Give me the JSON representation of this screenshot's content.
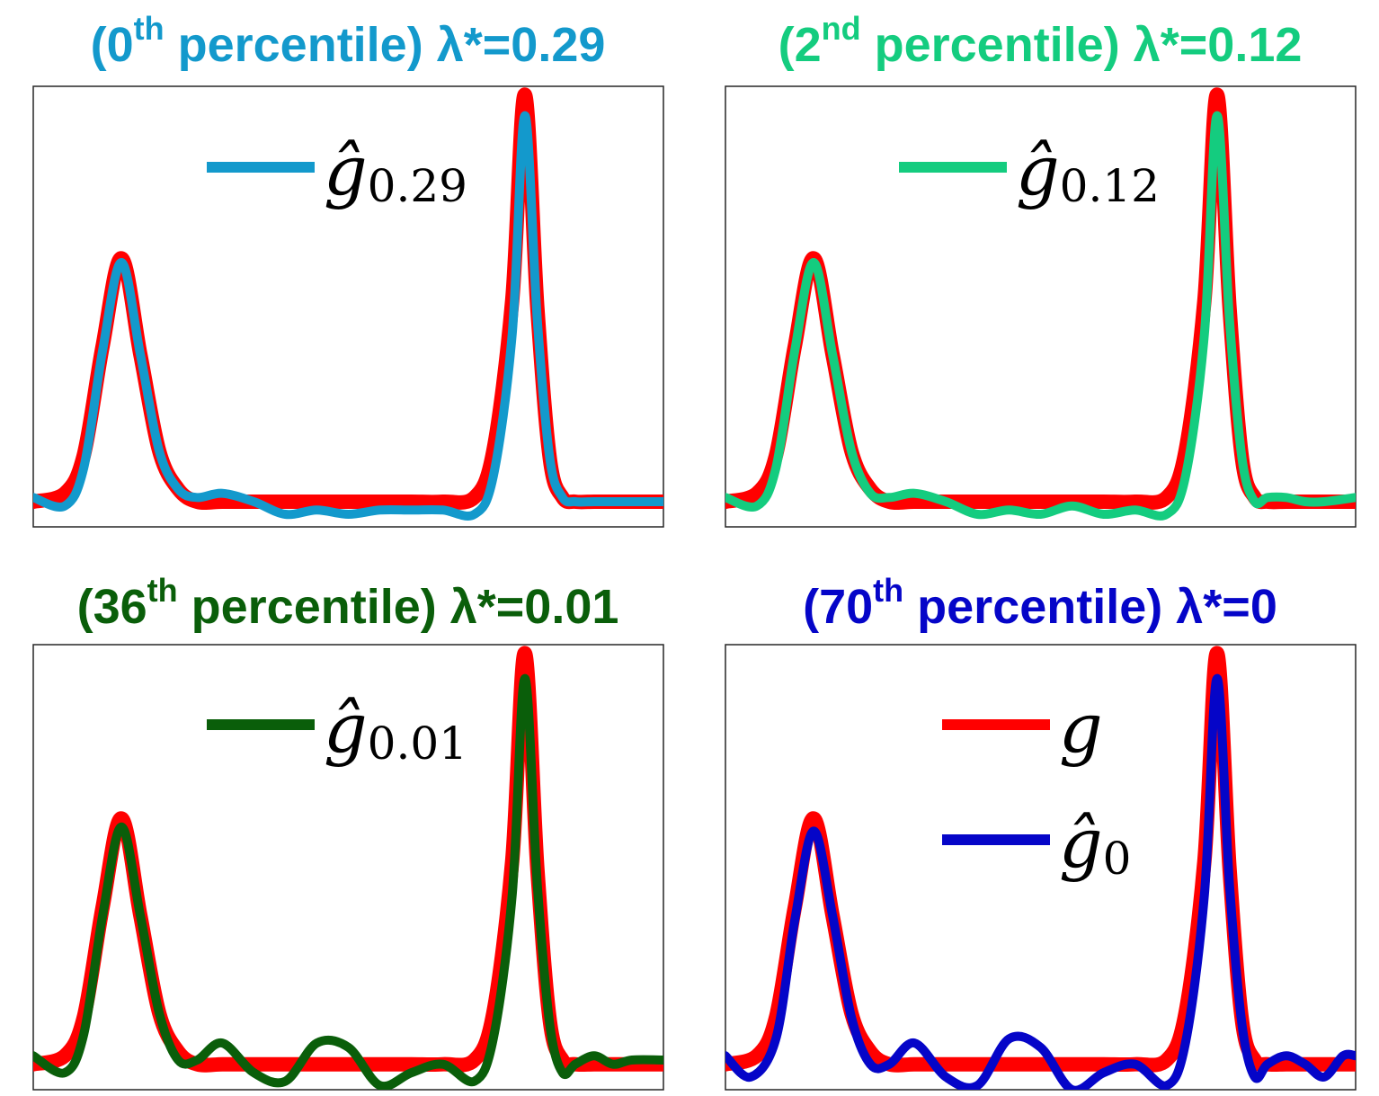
{
  "chart_data": [
    {
      "type": "line",
      "title": {
        "prefix": "(0",
        "sup": "th",
        "suffix": " percentile) λ*=0.29",
        "color": "#1399cc"
      },
      "xlabel": "",
      "ylabel": "",
      "xlim": [
        0,
        1
      ],
      "ylim": [
        -0.04,
        1.01
      ],
      "grid": false,
      "legend_location": "top-center",
      "series": [
        {
          "name": "",
          "color": "#ff0000",
          "x": [
            0,
            0.05,
            0.08,
            0.11,
            0.14,
            0.17,
            0.2,
            0.23,
            0.26,
            0.3,
            0.35,
            0.4,
            0.45,
            0.5,
            0.55,
            0.6,
            0.65,
            0.7,
            0.73,
            0.76,
            0.78,
            0.8,
            0.82,
            0.84,
            0.86,
            0.89,
            0.92,
            0.95,
            1
          ],
          "y": [
            0.02,
            0.04,
            0.13,
            0.39,
            0.6,
            0.37,
            0.14,
            0.05,
            0.02,
            0.02,
            0.02,
            0.02,
            0.02,
            0.02,
            0.02,
            0.02,
            0.02,
            0.03,
            0.14,
            0.5,
            0.99,
            0.48,
            0.12,
            0.03,
            0.02,
            0.02,
            0.02,
            0.02,
            0.02
          ]
        },
        {
          "name": "ĝ",
          "sub": "0.29",
          "color": "#1399cc",
          "x": [
            0,
            0.05,
            0.08,
            0.11,
            0.14,
            0.17,
            0.2,
            0.23,
            0.26,
            0.3,
            0.35,
            0.4,
            0.45,
            0.5,
            0.55,
            0.6,
            0.65,
            0.7,
            0.73,
            0.76,
            0.78,
            0.8,
            0.82,
            0.84,
            0.86,
            0.89,
            0.92,
            0.95,
            1
          ],
          "y": [
            0.03,
            0.01,
            0.1,
            0.38,
            0.59,
            0.37,
            0.14,
            0.05,
            0.03,
            0.04,
            0.02,
            -0.01,
            0.0,
            -0.01,
            0.0,
            0.0,
            0.0,
            -0.01,
            0.08,
            0.42,
            0.94,
            0.45,
            0.12,
            0.03,
            0.02,
            0.02,
            0.02,
            0.02,
            0.02
          ]
        }
      ]
    },
    {
      "type": "line",
      "title": {
        "prefix": "(2",
        "sup": "nd",
        "suffix": " percentile) λ*=0.12",
        "color": "#14cc7f"
      },
      "xlabel": "",
      "ylabel": "",
      "xlim": [
        0,
        1
      ],
      "ylim": [
        -0.04,
        1.01
      ],
      "grid": false,
      "legend_location": "top-center",
      "series": [
        {
          "name": "",
          "color": "#ff0000",
          "x": [
            0,
            0.05,
            0.08,
            0.11,
            0.14,
            0.17,
            0.2,
            0.23,
            0.26,
            0.3,
            0.35,
            0.4,
            0.45,
            0.5,
            0.55,
            0.6,
            0.65,
            0.7,
            0.73,
            0.76,
            0.78,
            0.8,
            0.82,
            0.84,
            0.86,
            0.89,
            0.92,
            0.95,
            1
          ],
          "y": [
            0.02,
            0.04,
            0.13,
            0.39,
            0.6,
            0.37,
            0.14,
            0.05,
            0.02,
            0.02,
            0.02,
            0.02,
            0.02,
            0.02,
            0.02,
            0.02,
            0.02,
            0.03,
            0.14,
            0.5,
            0.99,
            0.48,
            0.12,
            0.03,
            0.02,
            0.02,
            0.02,
            0.02,
            0.02
          ]
        },
        {
          "name": "ĝ",
          "sub": "0.12",
          "color": "#14cc7f",
          "x": [
            0,
            0.05,
            0.08,
            0.11,
            0.14,
            0.17,
            0.2,
            0.23,
            0.26,
            0.3,
            0.35,
            0.4,
            0.45,
            0.5,
            0.55,
            0.6,
            0.65,
            0.7,
            0.73,
            0.76,
            0.78,
            0.8,
            0.82,
            0.84,
            0.86,
            0.89,
            0.92,
            0.95,
            1
          ],
          "y": [
            0.03,
            0.01,
            0.1,
            0.38,
            0.59,
            0.37,
            0.14,
            0.04,
            0.03,
            0.04,
            0.02,
            -0.01,
            0.0,
            -0.01,
            0.01,
            -0.01,
            0.0,
            -0.01,
            0.08,
            0.42,
            0.94,
            0.45,
            0.12,
            0.02,
            0.03,
            0.03,
            0.02,
            0.02,
            0.03
          ]
        }
      ]
    },
    {
      "type": "line",
      "title": {
        "prefix": "(36",
        "sup": "th",
        "suffix": " percentile) λ*=0.01",
        "color": "#0a5e0a"
      },
      "xlabel": "",
      "ylabel": "",
      "xlim": [
        0,
        1
      ],
      "ylim": [
        -0.04,
        1.01
      ],
      "grid": false,
      "legend_location": "top-center",
      "series": [
        {
          "name": "",
          "color": "#ff0000",
          "x": [
            0,
            0.05,
            0.08,
            0.11,
            0.14,
            0.17,
            0.2,
            0.23,
            0.26,
            0.3,
            0.35,
            0.4,
            0.45,
            0.5,
            0.55,
            0.6,
            0.65,
            0.7,
            0.73,
            0.76,
            0.78,
            0.8,
            0.82,
            0.84,
            0.86,
            0.89,
            0.92,
            0.95,
            1
          ],
          "y": [
            0.02,
            0.04,
            0.13,
            0.39,
            0.6,
            0.37,
            0.14,
            0.05,
            0.02,
            0.02,
            0.02,
            0.02,
            0.02,
            0.02,
            0.02,
            0.02,
            0.02,
            0.03,
            0.14,
            0.5,
            0.99,
            0.48,
            0.12,
            0.03,
            0.02,
            0.02,
            0.02,
            0.02,
            0.02
          ]
        },
        {
          "name": "ĝ",
          "sub": "0.01",
          "color": "#0a5e0a",
          "x": [
            0,
            0.05,
            0.08,
            0.11,
            0.14,
            0.17,
            0.2,
            0.23,
            0.26,
            0.3,
            0.35,
            0.4,
            0.45,
            0.5,
            0.55,
            0.6,
            0.65,
            0.7,
            0.73,
            0.76,
            0.78,
            0.8,
            0.82,
            0.84,
            0.86,
            0.89,
            0.92,
            0.95,
            1
          ],
          "y": [
            0.04,
            0.0,
            0.09,
            0.37,
            0.58,
            0.37,
            0.14,
            0.03,
            0.03,
            0.07,
            0.0,
            -0.02,
            0.07,
            0.06,
            -0.03,
            0.0,
            0.02,
            -0.02,
            0.08,
            0.42,
            0.93,
            0.44,
            0.11,
            0.0,
            0.02,
            0.04,
            0.02,
            0.03,
            0.03
          ]
        }
      ]
    },
    {
      "type": "line",
      "title": {
        "prefix": "(70",
        "sup": "th",
        "suffix": " percentile) λ*=0",
        "color": "#0505c8"
      },
      "xlabel": "",
      "ylabel": "",
      "xlim": [
        0,
        1
      ],
      "ylim": [
        -0.04,
        1.01
      ],
      "grid": false,
      "legend_location": "top-center",
      "series": [
        {
          "name": "g",
          "sub": "",
          "color": "#ff0000",
          "x": [
            0,
            0.05,
            0.08,
            0.11,
            0.14,
            0.17,
            0.2,
            0.23,
            0.26,
            0.3,
            0.35,
            0.4,
            0.45,
            0.5,
            0.55,
            0.6,
            0.65,
            0.7,
            0.73,
            0.76,
            0.78,
            0.8,
            0.82,
            0.84,
            0.86,
            0.89,
            0.92,
            0.95,
            1
          ],
          "y": [
            0.02,
            0.04,
            0.13,
            0.39,
            0.6,
            0.37,
            0.14,
            0.05,
            0.02,
            0.02,
            0.02,
            0.02,
            0.02,
            0.02,
            0.02,
            0.02,
            0.02,
            0.03,
            0.14,
            0.5,
            0.99,
            0.48,
            0.12,
            0.03,
            0.02,
            0.02,
            0.02,
            0.02,
            0.02
          ]
        },
        {
          "name": "ĝ",
          "sub": "0",
          "color": "#0505c8",
          "x": [
            0,
            0.04,
            0.08,
            0.11,
            0.14,
            0.17,
            0.2,
            0.23,
            0.26,
            0.3,
            0.35,
            0.4,
            0.45,
            0.5,
            0.55,
            0.6,
            0.65,
            0.7,
            0.73,
            0.76,
            0.78,
            0.8,
            0.82,
            0.84,
            0.86,
            0.89,
            0.92,
            0.95,
            0.98,
            1
          ],
          "y": [
            0.04,
            -0.01,
            0.08,
            0.36,
            0.57,
            0.37,
            0.13,
            0.02,
            0.02,
            0.07,
            -0.01,
            -0.03,
            0.08,
            0.06,
            -0.04,
            0.0,
            0.02,
            -0.03,
            0.07,
            0.42,
            0.93,
            0.44,
            0.11,
            -0.01,
            0.02,
            0.04,
            0.02,
            -0.01,
            0.04,
            0.04
          ]
        }
      ]
    }
  ]
}
